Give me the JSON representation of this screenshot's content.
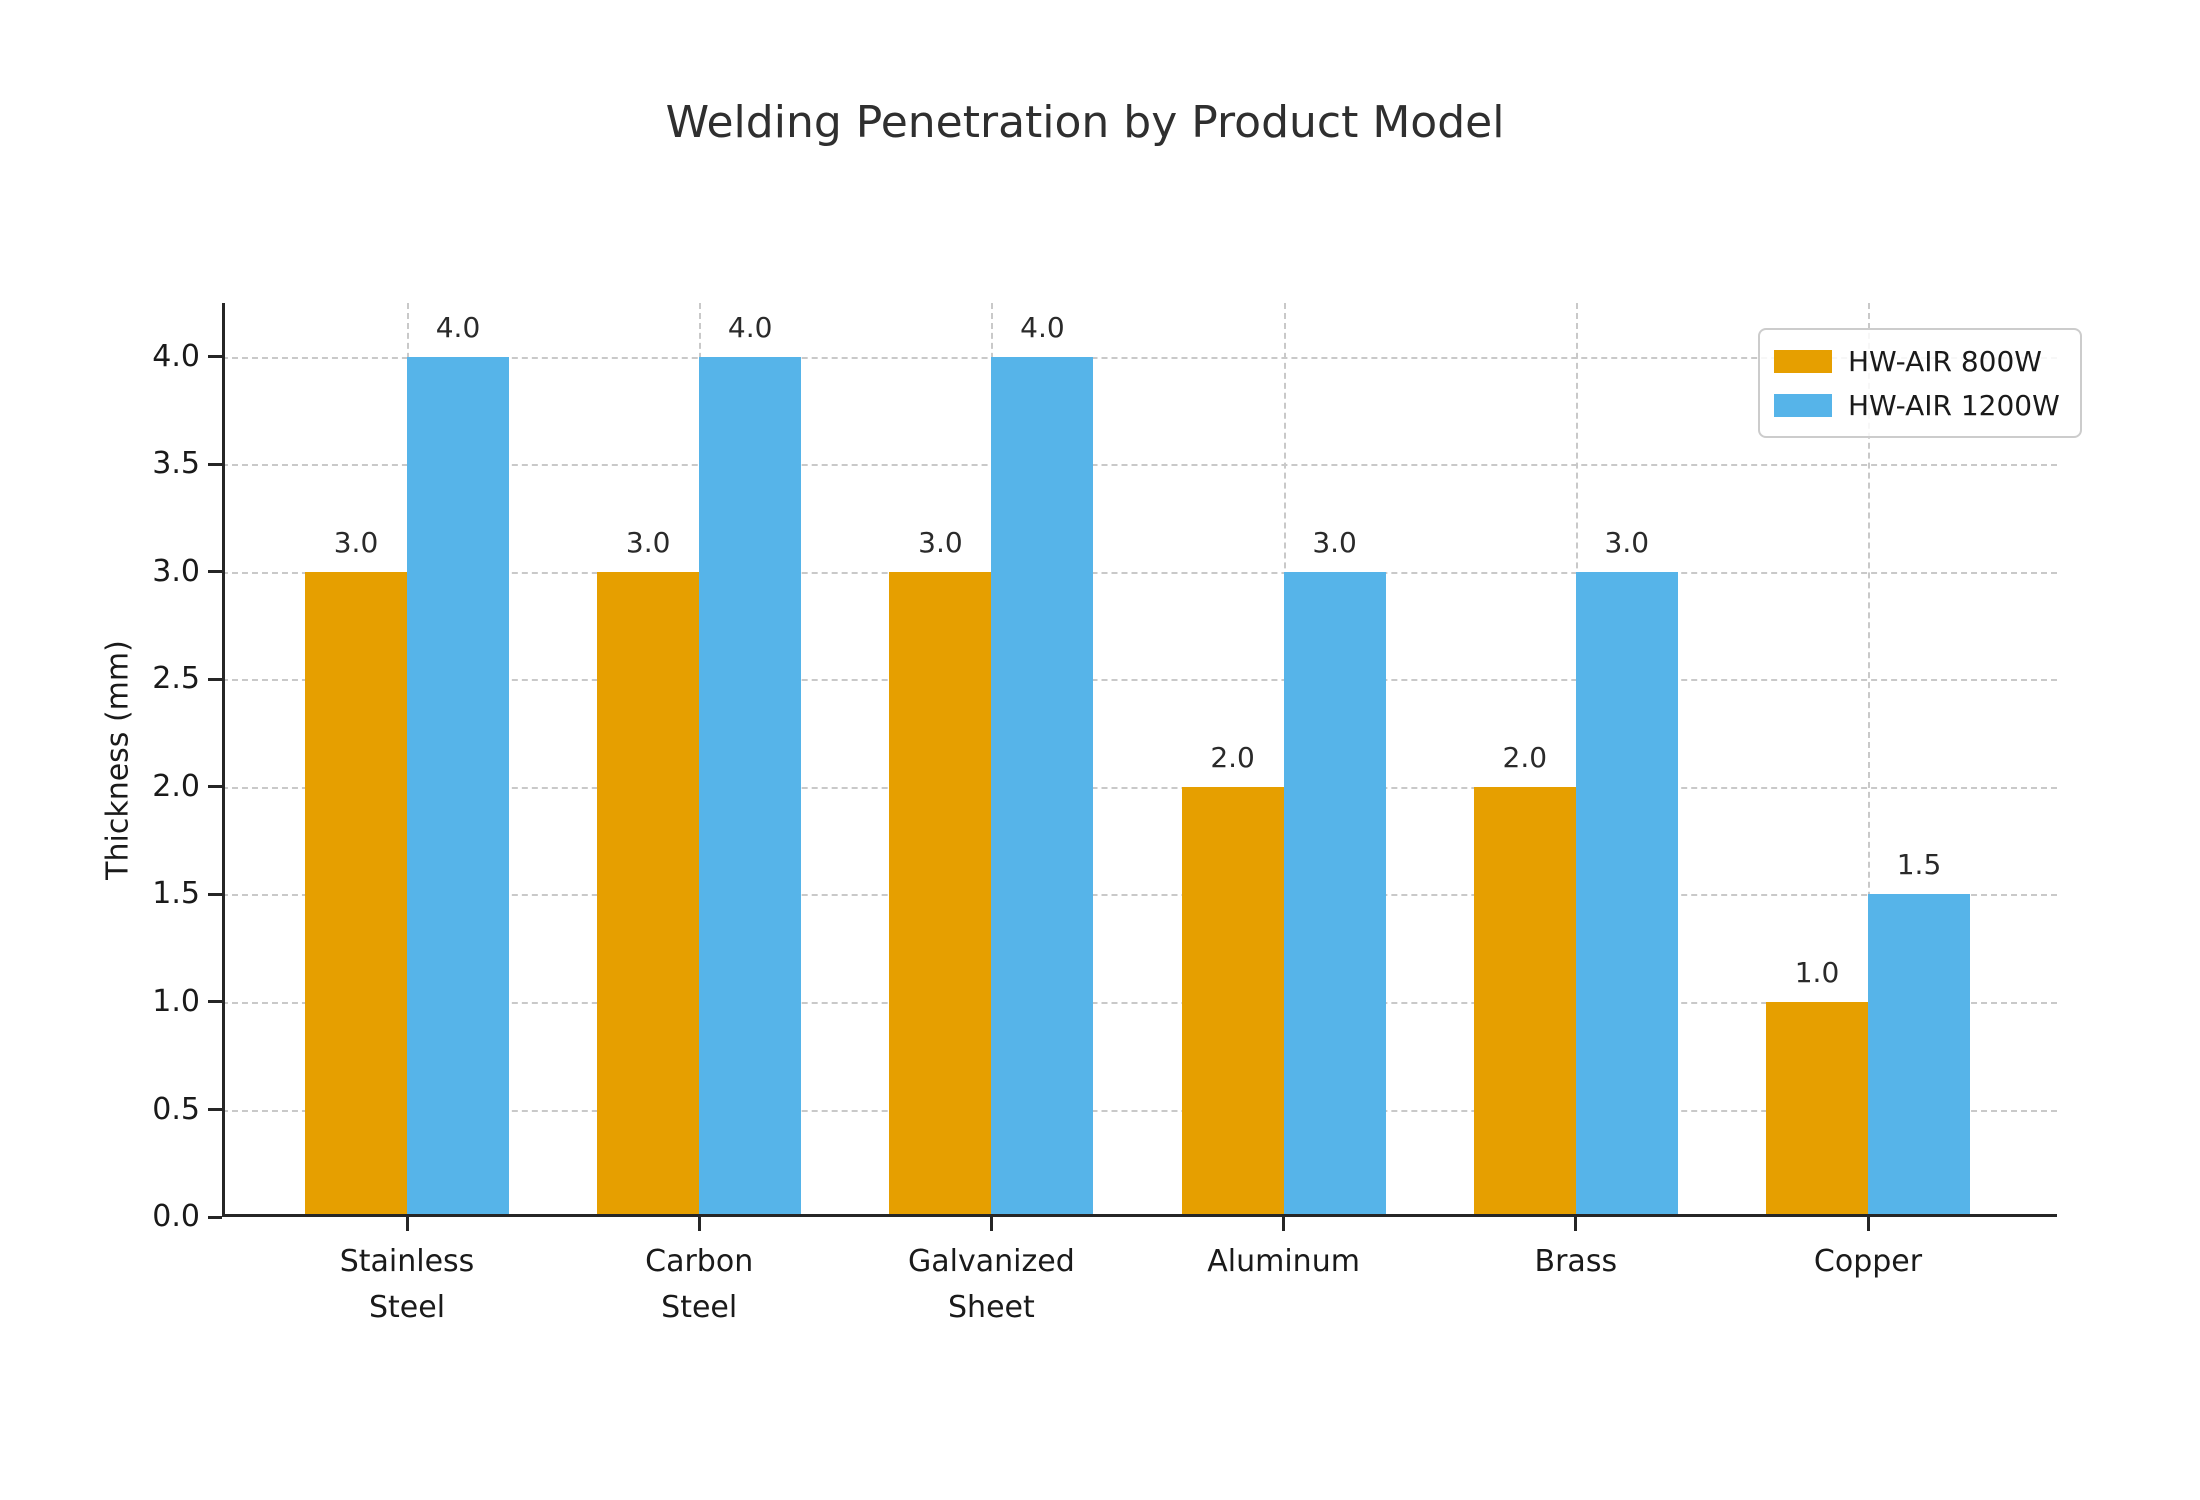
{
  "chart_data": {
    "type": "bar",
    "title": "Welding Penetration by Product Model",
    "xlabel": "",
    "ylabel": "Thickness (mm)",
    "categories": [
      "Stainless Steel",
      "Carbon Steel",
      "Galvanized Sheet",
      "Aluminum",
      "Brass",
      "Copper"
    ],
    "category_label_lines": [
      [
        "Stainless",
        "Steel"
      ],
      [
        "Carbon",
        "Steel"
      ],
      [
        "Galvanized",
        "Sheet"
      ],
      [
        "Aluminum"
      ],
      [
        "Brass"
      ],
      [
        "Copper"
      ]
    ],
    "series": [
      {
        "name": "HW-AIR 800W",
        "color": "#E69F00",
        "values": [
          3.0,
          3.0,
          3.0,
          2.0,
          2.0,
          1.0
        ],
        "value_labels": [
          "3.0",
          "3.0",
          "3.0",
          "2.0",
          "2.0",
          "1.0"
        ]
      },
      {
        "name": "HW-AIR 1200W",
        "color": "#56B4E9",
        "values": [
          4.0,
          4.0,
          4.0,
          3.0,
          3.0,
          1.5
        ],
        "value_labels": [
          "4.0",
          "4.0",
          "4.0",
          "3.0",
          "3.0",
          "1.5"
        ]
      }
    ],
    "y_ticks": [
      0.0,
      0.5,
      1.0,
      1.5,
      2.0,
      2.5,
      3.0,
      3.5,
      4.0
    ],
    "y_tick_labels": [
      "0.0",
      "0.5",
      "1.0",
      "1.5",
      "2.0",
      "2.5",
      "3.0",
      "3.5",
      "4.0"
    ],
    "ylim": [
      0,
      4.25
    ],
    "grid": {
      "horizontal": true,
      "vertical": true,
      "line_style": "dashed",
      "color": "#c9c9c9"
    },
    "legend": {
      "position": "upper right",
      "entries": [
        "HW-AIR 800W",
        "HW-AIR 1200W"
      ]
    },
    "colors": {
      "background": "#ffffff",
      "spine": "#262626",
      "title": "#2f2f2f",
      "tick_label": "#1a1a1a",
      "value_label": "#2a2a2a"
    }
  }
}
